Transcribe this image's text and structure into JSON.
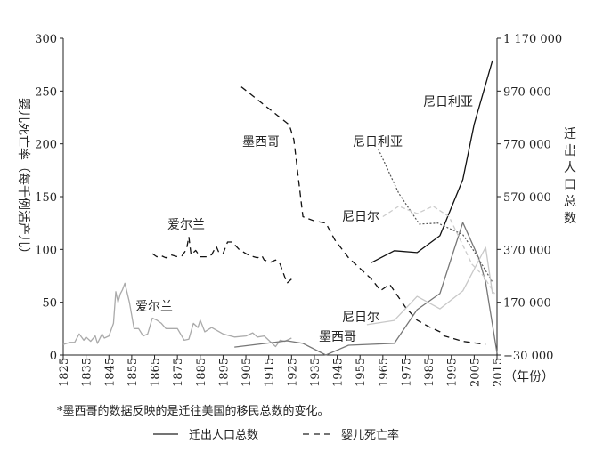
{
  "chart_data": {
    "type": "line",
    "left_axis": {
      "label": "婴儿死亡率（每千例活产儿）",
      "ylim": [
        0,
        300
      ],
      "ticks": [
        0,
        50,
        100,
        150,
        200,
        250,
        300
      ]
    },
    "right_axis": {
      "label": "迁出人口总数",
      "ylim": [
        -30000,
        1170000
      ],
      "ticks": [
        -30000,
        170000,
        370000,
        570000,
        770000,
        970000,
        1170000
      ],
      "tick_labels": [
        "−30 000",
        "170 000",
        "370 000",
        "570 000",
        "770 000",
        "970 000",
        "1 170 000"
      ]
    },
    "x_axis": {
      "xlim": [
        1825,
        2015
      ],
      "ticks": [
        1825,
        1835,
        1845,
        1855,
        1865,
        1875,
        1885,
        1895,
        1905,
        1915,
        1925,
        1935,
        1945,
        1955,
        1965,
        1975,
        1985,
        1995,
        2005,
        2015
      ],
      "unit_label": "（年份）"
    },
    "footnote": "*墨西哥的数据反映的是迁往美国的移民总数的变化。",
    "legend": {
      "position": "bottom",
      "items": [
        {
          "label": "迁出人口总数",
          "style": "solid"
        },
        {
          "label": "婴儿死亡率",
          "style": "dashed"
        }
      ]
    },
    "grid": false,
    "series": [
      {
        "name": "爱尔兰",
        "measure": "婴儿死亡率",
        "axis": "left",
        "style": "solid",
        "color": "#aaaaaa",
        "x": [
          1825,
          1828,
          1830,
          1832,
          1834,
          1835,
          1837,
          1839,
          1840,
          1842,
          1843,
          1845,
          1847,
          1848,
          1849,
          1850,
          1851,
          1852,
          1854,
          1856,
          1858,
          1860,
          1862,
          1864,
          1866,
          1868,
          1870,
          1875,
          1878,
          1880,
          1882,
          1884,
          1885,
          1887,
          1890,
          1895,
          1900,
          1905,
          1908,
          1910,
          1913,
          1915,
          1918,
          1920,
          1922,
          1925
        ],
        "y": [
          10,
          12,
          12,
          20,
          14,
          17,
          13,
          18,
          11,
          20,
          16,
          18,
          30,
          60,
          50,
          58,
          62,
          68,
          50,
          25,
          25,
          18,
          20,
          35,
          33,
          30,
          25,
          25,
          14,
          15,
          30,
          26,
          33,
          22,
          26,
          20,
          17,
          18,
          21,
          17,
          18,
          14,
          8,
          14,
          13,
          16
        ]
      },
      {
        "name": "爱尔兰",
        "measure": "婴儿死亡率",
        "axis": "left",
        "style": "dashed",
        "color": "#111111",
        "x": [
          1864,
          1866,
          1868,
          1870,
          1872,
          1875,
          1877,
          1879,
          1880,
          1881,
          1883,
          1885,
          1888,
          1890,
          1892,
          1893,
          1895,
          1897,
          1899,
          1902,
          1905,
          1907,
          1910,
          1912,
          1913,
          1916,
          1918,
          1920,
          1923,
          1925
        ],
        "y": [
          96,
          93,
          94,
          92,
          95,
          93,
          94,
          100,
          112,
          95,
          99,
          93,
          93,
          95,
          103,
          98,
          96,
          107,
          107,
          100,
          96,
          94,
          92,
          94,
          90,
          88,
          90,
          86,
          68,
          72
        ]
      },
      {
        "name": "墨西哥",
        "measure": "婴儿死亡率",
        "axis": "left",
        "style": "dashed",
        "color": "#111111",
        "x": [
          1903,
          1924,
          1926,
          1930,
          1935,
          1940,
          1944,
          1950,
          1960,
          1964,
          1968,
          1975,
          1980,
          1985,
          1990,
          1992,
          2000,
          2010
        ],
        "y": [
          254,
          218,
          204,
          131,
          127,
          125,
          109,
          92,
          72,
          61,
          67,
          45,
          33,
          27,
          22,
          18,
          13,
          10
        ]
      },
      {
        "name": "墨西哥",
        "measure": "迁出人口总数",
        "axis": "right",
        "style": "solid",
        "color": "#777777",
        "x": [
          1900,
          1923,
          1930,
          1940,
          1950,
          1970,
          1980,
          1990,
          2000,
          2007,
          2010,
          2015
        ],
        "y": [
          0,
          24000,
          14000,
          -30000,
          7000,
          14000,
          142000,
          203000,
          472000,
          337000,
          246000,
          -23000
        ]
      },
      {
        "name": "尼日利亚",
        "measure": "迁出人口总数",
        "axis": "right",
        "style": "solid",
        "color": "#111111",
        "x": [
          1960,
          1970,
          1980,
          1990,
          2000,
          2005,
          2013
        ],
        "y": [
          320000,
          365000,
          358000,
          422000,
          635000,
          845000,
          1086000
        ]
      },
      {
        "name": "尼日利亚",
        "measure": "婴儿死亡率",
        "axis": "left",
        "style": "dotted",
        "color": "#555555",
        "x": [
          1963,
          1972,
          1981,
          1989,
          2000,
          2005,
          2013
        ],
        "y": [
          195,
          153,
          124,
          125,
          114,
          98,
          69
        ]
      },
      {
        "name": "尼日尔",
        "measure": "婴儿死亡率",
        "axis": "left",
        "style": "dashed-light",
        "color": "#cccccc",
        "x": [
          1965,
          1972,
          1980,
          1987,
          1994,
          2004,
          2009,
          2014
        ],
        "y": [
          131,
          141,
          134,
          141,
          131,
          86,
          75,
          58
        ]
      },
      {
        "name": "尼日尔",
        "measure": "迁出人口总数",
        "axis": "right",
        "style": "solid",
        "color": "#c8c8c8",
        "x": [
          1958,
          1970,
          1980,
          1990,
          2000,
          2010,
          2013
        ],
        "y": [
          85000,
          101000,
          192000,
          145000,
          213000,
          378000,
          203000
        ]
      }
    ],
    "annotations": [
      {
        "text": "爱尔兰"
      },
      {
        "text": "爱尔兰"
      },
      {
        "text": "墨西哥"
      },
      {
        "text": "尼日利亚"
      },
      {
        "text": "尼日利亚"
      },
      {
        "text": "尼日尔"
      },
      {
        "text": "尼日尔"
      },
      {
        "text": "墨西哥"
      }
    ]
  }
}
